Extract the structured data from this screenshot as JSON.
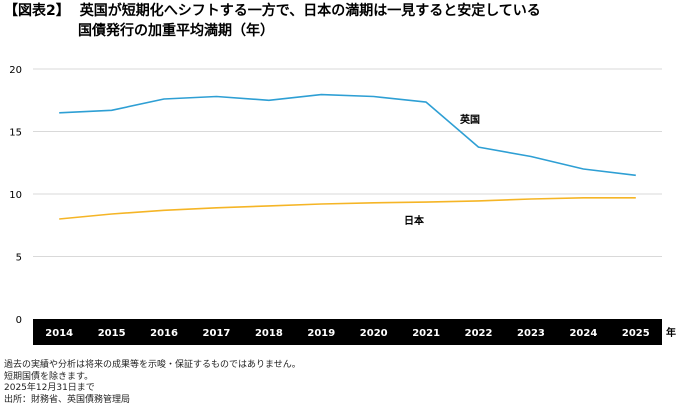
{
  "figure_label": "【図表2】",
  "title_line1": "英国が短期化へシフトする一方で、日本の満期は一見すると安定している",
  "title_line2": "国債発行の加重平均満期（年）",
  "colors": {
    "uk_line": "#2e9fd4",
    "japan_line": "#f5b526",
    "axis_band": "#000000",
    "grid": "#d9d9d9"
  },
  "chart_data": {
    "type": "line",
    "title": "国債発行の加重平均満期（年）",
    "xlabel": "年",
    "ylabel": "",
    "categories": [
      "2014",
      "2015",
      "2016",
      "2017",
      "2018",
      "2019",
      "2020",
      "2021",
      "2022",
      "2023",
      "2024",
      "2025"
    ],
    "ylim": [
      0,
      20
    ],
    "yticks": [
      0,
      5,
      10,
      15,
      20
    ],
    "grid": true,
    "series": [
      {
        "name": "英国",
        "color": "#2e9fd4",
        "values": [
          16.5,
          16.7,
          17.6,
          17.8,
          17.5,
          17.95,
          17.8,
          17.35,
          13.75,
          13.0,
          12.0,
          11.5
        ]
      },
      {
        "name": "日本",
        "color": "#f5b526",
        "values": [
          8.0,
          8.4,
          8.7,
          8.9,
          9.05,
          9.2,
          9.3,
          9.35,
          9.45,
          9.6,
          9.7,
          9.7
        ]
      }
    ]
  },
  "notes": [
    "過去の実績や分析は将来の成果等を示唆・保証するものではありません。",
    "短期国債を除きます。",
    "2025年12月31日まで",
    "出所：財務省、英国債務管理局"
  ]
}
